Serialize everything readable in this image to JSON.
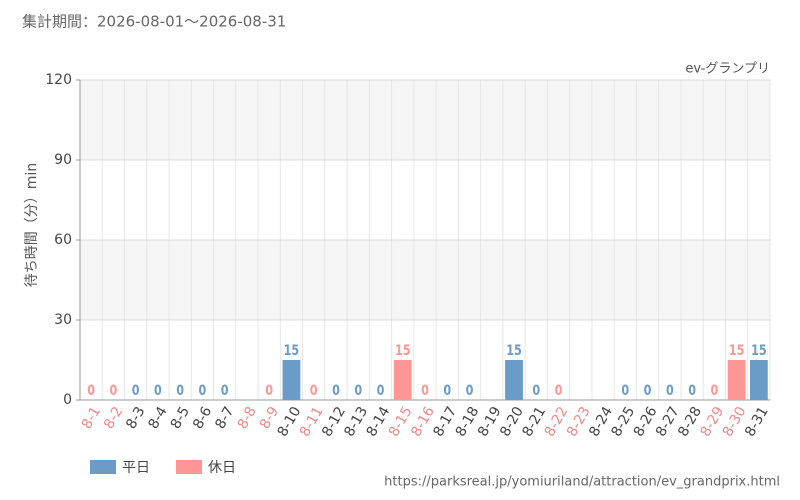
{
  "chart_data": {
    "type": "bar",
    "title": "集計期間：2026-08-01～2026-08-31",
    "subtitle": "ev-グランプリ",
    "y_label": "待ち時間（分）min",
    "footer": "https://parksreal.jp/yomiuriland/attraction/ev_grandprix.html",
    "categories": [
      "8-1",
      "8-2",
      "8-3",
      "8-4",
      "8-5",
      "8-6",
      "8-7",
      "8-8",
      "8-9",
      "8-10",
      "8-11",
      "8-12",
      "8-13",
      "8-14",
      "8-15",
      "8-16",
      "8-17",
      "8-18",
      "8-19",
      "8-20",
      "8-21",
      "8-22",
      "8-23",
      "8-24",
      "8-25",
      "8-26",
      "8-27",
      "8-28",
      "8-29",
      "8-30",
      "8-31"
    ],
    "category_colors": [
      "#f08a8a",
      "#f08a8a",
      "#444444",
      "#444444",
      "#444444",
      "#444444",
      "#444444",
      "#f08a8a",
      "#f08a8a",
      "#444444",
      "#f08a8a",
      "#444444",
      "#444444",
      "#444444",
      "#f08a8a",
      "#f08a8a",
      "#444444",
      "#444444",
      "#444444",
      "#444444",
      "#444444",
      "#f08a8a",
      "#f08a8a",
      "#444444",
      "#444444",
      "#444444",
      "#444444",
      "#444444",
      "#f08a8a",
      "#f08a8a",
      "#444444"
    ],
    "series": [
      {
        "name": "平日",
        "color": "#6a9cc7",
        "values": [
          null,
          null,
          0,
          0,
          0,
          0,
          0,
          null,
          null,
          15,
          null,
          0,
          0,
          0,
          null,
          null,
          0,
          0,
          null,
          15,
          0,
          null,
          null,
          null,
          0,
          0,
          0,
          0,
          null,
          null,
          15
        ]
      },
      {
        "name": "休日",
        "color": "#ff9696",
        "values": [
          0,
          0,
          null,
          null,
          null,
          null,
          null,
          null,
          0,
          null,
          0,
          null,
          null,
          null,
          15,
          0,
          null,
          null,
          null,
          null,
          null,
          0,
          null,
          null,
          null,
          null,
          null,
          null,
          0,
          15,
          null
        ]
      }
    ],
    "ylim": [
      0,
      120
    ],
    "yticks": [
      0,
      30,
      60,
      90,
      120
    ],
    "grid": true
  }
}
